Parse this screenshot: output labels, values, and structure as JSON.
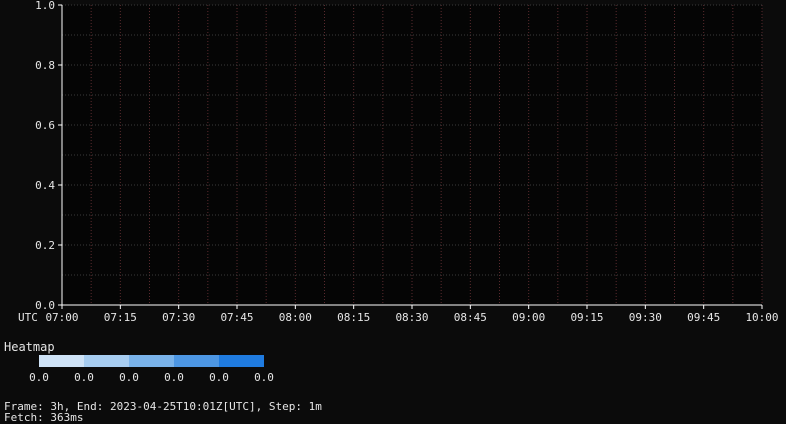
{
  "chart_data": {
    "type": "heatmap",
    "title": "",
    "xlabel": "",
    "ylabel": "",
    "timezone_label": "UTC",
    "x_ticks": [
      "07:00",
      "07:15",
      "07:30",
      "07:45",
      "08:00",
      "08:15",
      "08:30",
      "08:45",
      "09:00",
      "09:15",
      "09:30",
      "09:45",
      "10:00"
    ],
    "y_ticks": [
      "0.0",
      "0.2",
      "0.4",
      "0.6",
      "0.8",
      "1.0"
    ],
    "ylim": [
      0,
      1
    ],
    "xlim": [
      "07:00",
      "10:00"
    ],
    "x_minor_per_major": 2,
    "y_minor_per_major": 2,
    "grid": true,
    "values": [],
    "colors": {
      "background": "#050505",
      "axis": "#ffffff",
      "grid_x": "#5a2a2e",
      "grid_y": "#3a3a3a"
    }
  },
  "legend": {
    "title": "Heatmap",
    "colors": [
      "#cfe3f7",
      "#a7cdf1",
      "#7ab3ea",
      "#4d97e4",
      "#1f7be0"
    ],
    "labels": [
      "0.0",
      "0.0",
      "0.0",
      "0.0",
      "0.0",
      "0.0"
    ]
  },
  "footer": {
    "frame_line": "Frame: 3h, End: 2023-04-25T10:01Z[UTC], Step: 1m",
    "fetch_line": "Fetch: 363ms"
  }
}
